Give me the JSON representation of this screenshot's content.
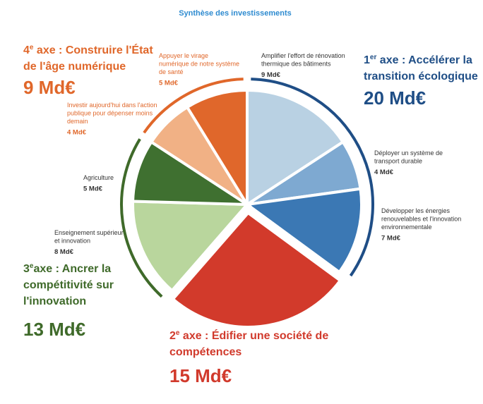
{
  "chart_data": {
    "type": "pie",
    "title": "Synthèse des investissements",
    "groups": [
      {
        "ordinal": "1",
        "suffix": "er",
        "lines": [
          " axe : Accélérer la",
          "transition écologique"
        ],
        "value": 20,
        "value_label": "20 Md€",
        "color": "#1f4e86",
        "slices": [
          {
            "lines": [
              "Amplifier l'effort de rénovation",
              "thermique des bâtiments"
            ],
            "value": 9,
            "value_label": "9 Md€",
            "color": "#b9d1e3"
          },
          {
            "lines": [
              "Déployer un système de",
              "transport durable"
            ],
            "value": 4,
            "value_label": "4 Md€",
            "color": "#7ea9d1"
          },
          {
            "lines": [
              "Développer les énergies",
              "renouvelables et l'innovation",
              "environnementale"
            ],
            "value": 7,
            "value_label": "7 Md€",
            "color": "#3b78b4"
          }
        ]
      },
      {
        "ordinal": "2",
        "suffix": "e",
        "lines": [
          " axe : Édifier une société de",
          "compétences"
        ],
        "value": 15,
        "value_label": "15 Md€",
        "color": "#d13a2c",
        "slices": [
          {
            "value": 15,
            "color": "#d23a2b"
          }
        ]
      },
      {
        "ordinal": "3",
        "suffix": "e",
        "lines": [
          "axe : Ancrer la",
          "compétitivité sur",
          "l'innovation"
        ],
        "value": 13,
        "value_label": "13 Md€",
        "color": "#3f6a2a",
        "slices": [
          {
            "lines": [
              "Enseignement supérieur",
              "et innovation"
            ],
            "value": 8,
            "value_label": "8 Md€",
            "color": "#b9d69d"
          },
          {
            "lines": [
              "Agriculture"
            ],
            "value": 5,
            "value_label": "5 Md€",
            "color": "#3f7030"
          }
        ]
      },
      {
        "ordinal": "4",
        "suffix": "e",
        "lines": [
          " axe : Construire l'État",
          "de l'âge numérique"
        ],
        "value": 9,
        "value_label": "9 Md€",
        "color": "#e0672a",
        "slices": [
          {
            "lines": [
              "Investir aujourd'hui dans l'action",
              "publique pour dépenser moins",
              "demain"
            ],
            "value": 4,
            "value_label": "4 Md€",
            "color": "#f1b185"
          },
          {
            "lines": [
              "Appuyer le virage",
              "numérique de notre système",
              "de santé"
            ],
            "value": 5,
            "value_label": "5 Md€",
            "color": "#e0672b"
          }
        ]
      }
    ]
  }
}
